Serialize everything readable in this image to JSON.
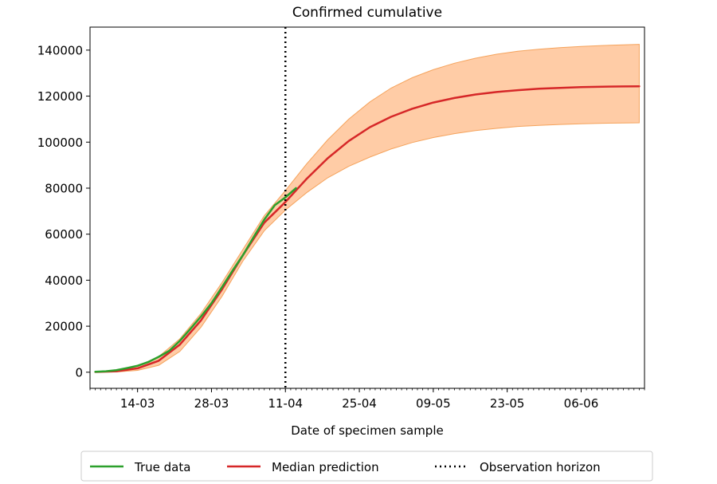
{
  "chart_data": {
    "type": "line",
    "title": "Confirmed cumulative",
    "xlabel": "Date of specimen sample",
    "ylabel": "",
    "xlim": [
      "2020-03-05",
      "2020-06-18"
    ],
    "ylim": [
      -7000,
      150000
    ],
    "x_ticks": [
      {
        "date": "2020-03-14",
        "label": "14-03"
      },
      {
        "date": "2020-03-28",
        "label": "28-03"
      },
      {
        "date": "2020-04-11",
        "label": "11-04"
      },
      {
        "date": "2020-04-25",
        "label": "25-04"
      },
      {
        "date": "2020-05-09",
        "label": "09-05"
      },
      {
        "date": "2020-05-23",
        "label": "23-05"
      },
      {
        "date": "2020-06-06",
        "label": "06-06"
      }
    ],
    "y_ticks": [
      {
        "value": 0,
        "label": "0"
      },
      {
        "value": 20000,
        "label": "20000"
      },
      {
        "value": 40000,
        "label": "40000"
      },
      {
        "value": 60000,
        "label": "60000"
      },
      {
        "value": 80000,
        "label": "80000"
      },
      {
        "value": 100000,
        "label": "100000"
      },
      {
        "value": 120000,
        "label": "120000"
      },
      {
        "value": 140000,
        "label": "140000"
      }
    ],
    "observation_horizon": "2020-04-11",
    "series": [
      {
        "name": "True data",
        "color": "#2ca02c",
        "points": [
          [
            "2020-03-06",
            200
          ],
          [
            "2020-03-08",
            400
          ],
          [
            "2020-03-10",
            900
          ],
          [
            "2020-03-12",
            1800
          ],
          [
            "2020-03-14",
            2800
          ],
          [
            "2020-03-16",
            4400
          ],
          [
            "2020-03-18",
            6700
          ],
          [
            "2020-03-20",
            9300
          ],
          [
            "2020-03-22",
            13600
          ],
          [
            "2020-03-24",
            18800
          ],
          [
            "2020-03-26",
            24200
          ],
          [
            "2020-03-28",
            30000
          ],
          [
            "2020-03-30",
            37000
          ],
          [
            "2020-04-01",
            44200
          ],
          [
            "2020-04-03",
            51000
          ],
          [
            "2020-04-05",
            58800
          ],
          [
            "2020-04-07",
            66300
          ],
          [
            "2020-04-09",
            72600
          ],
          [
            "2020-04-11",
            76000
          ],
          [
            "2020-04-13",
            80000
          ]
        ]
      },
      {
        "name": "Median prediction",
        "color": "#d62728",
        "points": [
          [
            "2020-03-06",
            100
          ],
          [
            "2020-03-10",
            400
          ],
          [
            "2020-03-14",
            1700
          ],
          [
            "2020-03-18",
            5000
          ],
          [
            "2020-03-22",
            12000
          ],
          [
            "2020-03-26",
            22500
          ],
          [
            "2020-03-30",
            36000
          ],
          [
            "2020-04-03",
            51000
          ],
          [
            "2020-04-07",
            65000
          ],
          [
            "2020-04-11",
            74000
          ],
          [
            "2020-04-15",
            84000
          ],
          [
            "2020-04-19",
            93000
          ],
          [
            "2020-04-23",
            100500
          ],
          [
            "2020-04-27",
            106500
          ],
          [
            "2020-05-01",
            111000
          ],
          [
            "2020-05-05",
            114500
          ],
          [
            "2020-05-09",
            117200
          ],
          [
            "2020-05-13",
            119200
          ],
          [
            "2020-05-17",
            120700
          ],
          [
            "2020-05-21",
            121800
          ],
          [
            "2020-05-25",
            122600
          ],
          [
            "2020-05-29",
            123200
          ],
          [
            "2020-06-02",
            123600
          ],
          [
            "2020-06-06",
            123900
          ],
          [
            "2020-06-10",
            124100
          ],
          [
            "2020-06-14",
            124200
          ],
          [
            "2020-06-17",
            124250
          ]
        ]
      }
    ],
    "confidence_band": {
      "color": "#ffbb88",
      "points": [
        [
          "2020-03-06",
          0,
          300
        ],
        [
          "2020-03-10",
          100,
          800
        ],
        [
          "2020-03-14",
          800,
          2600
        ],
        [
          "2020-03-18",
          3000,
          6800
        ],
        [
          "2020-03-22",
          9000,
          14500
        ],
        [
          "2020-03-26",
          19500,
          25500
        ],
        [
          "2020-03-30",
          33000,
          39000
        ],
        [
          "2020-04-03",
          48500,
          53500
        ],
        [
          "2020-04-07",
          61500,
          68000
        ],
        [
          "2020-04-11",
          70500,
          79000
        ],
        [
          "2020-04-15",
          78000,
          90500
        ],
        [
          "2020-04-19",
          84500,
          101000
        ],
        [
          "2020-04-23",
          89500,
          110000
        ],
        [
          "2020-04-27",
          93500,
          117500
        ],
        [
          "2020-05-01",
          97000,
          123500
        ],
        [
          "2020-05-05",
          99800,
          128000
        ],
        [
          "2020-05-09",
          102000,
          131500
        ],
        [
          "2020-05-13",
          103700,
          134300
        ],
        [
          "2020-05-17",
          105000,
          136500
        ],
        [
          "2020-05-21",
          106000,
          138200
        ],
        [
          "2020-05-25",
          106800,
          139500
        ],
        [
          "2020-05-29",
          107300,
          140400
        ],
        [
          "2020-06-02",
          107700,
          141100
        ],
        [
          "2020-06-06",
          108000,
          141600
        ],
        [
          "2020-06-10",
          108200,
          142000
        ],
        [
          "2020-06-14",
          108300,
          142300
        ],
        [
          "2020-06-17",
          108400,
          142500
        ]
      ]
    },
    "legend": {
      "placement": "bottom-center",
      "entries": [
        {
          "label": "True data",
          "color": "#2ca02c",
          "style": "solid"
        },
        {
          "label": "Median prediction",
          "color": "#d62728",
          "style": "solid"
        },
        {
          "label": "Observation horizon",
          "color": "#000000",
          "style": "dotted"
        }
      ]
    },
    "grid": false
  }
}
